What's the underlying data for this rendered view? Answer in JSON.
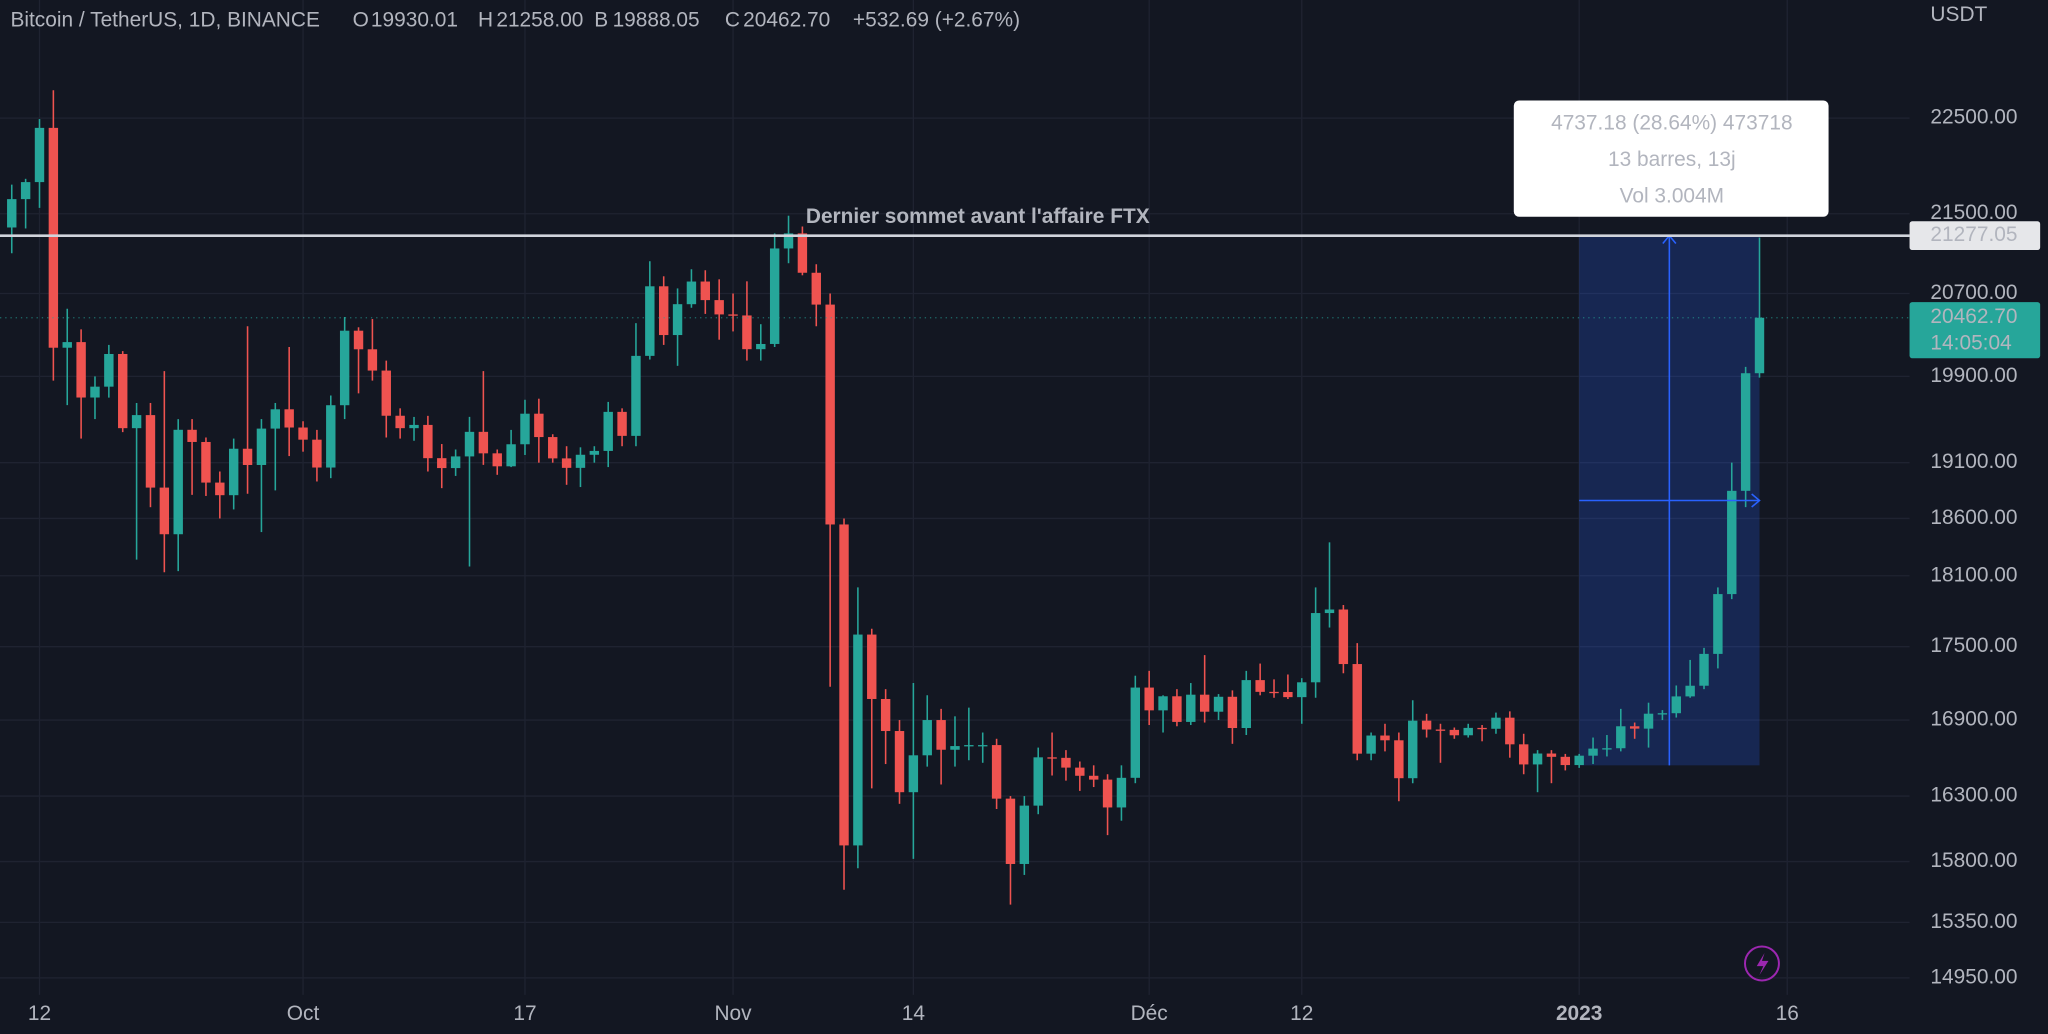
{
  "chart_data": {
    "type": "candlestick",
    "title": "Bitcoin / TetherUS, 1D, BINANCE",
    "legend": [
      {
        "key": "O",
        "value": "19930.01"
      },
      {
        "key": "H",
        "value": "21258.00"
      },
      {
        "key": "B",
        "value": "19888.05"
      },
      {
        "key": "C",
        "value": "20462.70"
      }
    ],
    "change": "+532.69 (+2.67%)",
    "unit": "USDT",
    "colors": {
      "up": "#26a69a",
      "down": "#ef5350"
    },
    "log": true,
    "grid": true,
    "ylim": [
      14830,
      23800
    ],
    "yticks": [
      {
        "value": 22500,
        "label": "22500.00"
      },
      {
        "value": 21500,
        "label": "21500.00"
      },
      {
        "value": 20700,
        "label": "20700.00"
      },
      {
        "value": 19900,
        "label": "19900.00"
      },
      {
        "value": 19100,
        "label": "19100.00"
      },
      {
        "value": 18600,
        "label": "18600.00"
      },
      {
        "value": 18100,
        "label": "18100.00"
      },
      {
        "value": 17500,
        "label": "17500.00"
      },
      {
        "value": 16900,
        "label": "16900.00"
      },
      {
        "value": 16300,
        "label": "16300.00"
      },
      {
        "value": 15800,
        "label": "15800.00"
      },
      {
        "value": 15350,
        "label": "15350.00"
      },
      {
        "value": 14950,
        "label": "14950.00"
      }
    ],
    "categories": [
      null,
      null,
      "12",
      null,
      null,
      null,
      null,
      null,
      null,
      null,
      null,
      null,
      null,
      null,
      null,
      null,
      null,
      null,
      null,
      null,
      null,
      "Oct",
      null,
      null,
      null,
      null,
      null,
      null,
      null,
      null,
      null,
      null,
      null,
      null,
      null,
      null,
      null,
      "17",
      null,
      null,
      null,
      null,
      null,
      null,
      null,
      null,
      null,
      null,
      null,
      null,
      null,
      null,
      "Nov",
      null,
      null,
      null,
      null,
      null,
      null,
      null,
      null,
      null,
      null,
      null,
      null,
      "14",
      null,
      null,
      null,
      null,
      null,
      null,
      null,
      null,
      null,
      null,
      null,
      null,
      null,
      null,
      null,
      null,
      "Déc",
      null,
      null,
      null,
      null,
      null,
      null,
      null,
      null,
      null,
      null,
      "12",
      null,
      null,
      null,
      null,
      null,
      null,
      null,
      null,
      null,
      null,
      null,
      null,
      null,
      null,
      null,
      null,
      null,
      null,
      null,
      "2023",
      null,
      null,
      null,
      null,
      null,
      null,
      null,
      null,
      null,
      null,
      null,
      null,
      null,
      null,
      "16"
    ],
    "open": [
      21360,
      21650,
      21826,
      22396,
      20173,
      20227,
      19701,
      19803,
      20113,
      19416,
      19537,
      18875,
      18461,
      19401,
      19289,
      18920,
      18807,
      19227,
      19079,
      19412,
      19591,
      19422,
      19310,
      19056,
      19629,
      20337,
      20158,
      19955,
      19531,
      19416,
      19446,
      19141,
      19051,
      19157,
      19382,
      19185,
      19067,
      19268,
      19550,
      19334,
      19139,
      19053,
      19172,
      19207,
      19567,
      19345,
      20095,
      20771,
      20295,
      20595,
      20818,
      20635,
      20495,
      20485,
      20159,
      20209,
      21148,
      21300,
      20905,
      20591,
      18547,
      15922,
      17601,
      17070,
      16812,
      16330,
      16619,
      16900,
      16663,
      16692,
      16700,
      16700,
      16280,
      15782,
      16226,
      16603,
      16599,
      16522,
      16458,
      16428,
      16212,
      16442,
      17163,
      16978,
      17092,
      16885,
      17105,
      16967,
      17088,
      16836,
      17224,
      17128,
      17127,
      17085,
      17206,
      17782,
      17812,
      17356,
      16632,
      16776,
      16738,
      16439,
      16895,
      16824,
      16821,
      16778,
      16837,
      16830,
      16919,
      16706,
      16547,
      16633,
      16607,
      16542,
      16616,
      16672,
      16675,
      16850,
      16831,
      16951,
      16955,
      17091,
      17178,
      17440,
      17943,
      18846,
      19930.01,
      null,
      null
    ],
    "high": [
      21800,
      21860,
      22490,
      22800,
      20550,
      20350,
      19900,
      20200,
      20140,
      19650,
      19650,
      19950,
      19500,
      19500,
      19330,
      19020,
      19320,
      20380,
      19500,
      19650,
      20180,
      19480,
      19400,
      19720,
      20470,
      20370,
      20450,
      20050,
      19600,
      19520,
      19530,
      19270,
      19220,
      19520,
      19950,
      19220,
      19400,
      19680,
      19690,
      19360,
      19250,
      19240,
      19250,
      19660,
      19600,
      20410,
      21020,
      20870,
      20750,
      20940,
      20930,
      20840,
      20700,
      20820,
      20400,
      21300,
      21480,
      21370,
      20990,
      20700,
      18600,
      18000,
      17650,
      17150,
      16900,
      17200,
      17100,
      16990,
      16930,
      17000,
      16800,
      16750,
      16300,
      16300,
      16680,
      16800,
      16660,
      16570,
      16540,
      16470,
      16540,
      17260,
      17300,
      17100,
      17150,
      17200,
      17430,
      17110,
      17140,
      17300,
      17360,
      17230,
      17270,
      17240,
      18000,
      18390,
      17850,
      17530,
      16800,
      16870,
      16800,
      17060,
      16950,
      16870,
      16840,
      16870,
      16860,
      16960,
      16970,
      16790,
      16660,
      16660,
      16630,
      16630,
      16760,
      16780,
      16990,
      16880,
      17040,
      16980,
      17180,
      17390,
      17490,
      18000,
      19100,
      19990,
      21258,
      null,
      null
    ],
    "low": [
      21100,
      21350,
      21560,
      19860,
      19630,
      19320,
      19500,
      19700,
      19380,
      18240,
      18700,
      18130,
      18140,
      18810,
      18800,
      18600,
      18680,
      18820,
      18480,
      18850,
      19160,
      19200,
      18930,
      18960,
      19500,
      19740,
      19860,
      19330,
      19320,
      19300,
      19020,
      18870,
      18980,
      18180,
      19080,
      18990,
      19060,
      19170,
      19100,
      19100,
      18900,
      18880,
      19100,
      19060,
      19250,
      19250,
      20060,
      20200,
      20000,
      20560,
      20500,
      20250,
      20330,
      20050,
      20050,
      20180,
      21000,
      20880,
      20380,
      17170,
      15590,
      15750,
      16360,
      16550,
      16240,
      15820,
      16530,
      16390,
      16530,
      16580,
      16560,
      16200,
      15480,
      15700,
      16160,
      16460,
      16420,
      16340,
      16370,
      16000,
      16110,
      16400,
      16860,
      16800,
      16850,
      16860,
      16880,
      16900,
      16710,
      16780,
      17100,
      17080,
      17070,
      16870,
      17080,
      17660,
      17280,
      16580,
      16580,
      16650,
      16260,
      16400,
      16760,
      16560,
      16750,
      16760,
      16730,
      16790,
      16600,
      16470,
      16330,
      16400,
      16500,
      16520,
      16550,
      16610,
      16650,
      16750,
      16680,
      16900,
      16920,
      17080,
      17150,
      17320,
      17900,
      18700,
      19888.05,
      null,
      null
    ],
    "close": [
      21650,
      21826,
      22396,
      20173,
      20227,
      19701,
      19803,
      20113,
      19416,
      19537,
      18875,
      18461,
      19401,
      19289,
      18920,
      18807,
      19227,
      19079,
      19412,
      19591,
      19422,
      19310,
      19056,
      19629,
      20337,
      20158,
      19955,
      19531,
      19416,
      19446,
      19141,
      19051,
      19157,
      19382,
      19185,
      19067,
      19268,
      19550,
      19334,
      19139,
      19053,
      19172,
      19207,
      19567,
      19345,
      20095,
      20771,
      20295,
      20595,
      20818,
      20635,
      20495,
      20485,
      20159,
      20209,
      21148,
      21300,
      20905,
      20591,
      18547,
      15922,
      17601,
      17070,
      16812,
      16330,
      16619,
      16900,
      16663,
      16692,
      16700,
      16700,
      16280,
      15782,
      16226,
      16603,
      16599,
      16522,
      16458,
      16428,
      16212,
      16442,
      17163,
      16978,
      17092,
      16885,
      17105,
      16967,
      17088,
      16836,
      17224,
      17128,
      17127,
      17085,
      17206,
      17782,
      17812,
      17356,
      16632,
      16776,
      16738,
      16439,
      16895,
      16824,
      16821,
      16778,
      16837,
      16830,
      16919,
      16706,
      16547,
      16633,
      16607,
      16542,
      16616,
      16672,
      16675,
      16850,
      16831,
      16951,
      16955,
      17091,
      17178,
      17440,
      17943,
      18846,
      19930.01,
      20462.7,
      null,
      null
    ],
    "hline": {
      "value": 21277.05,
      "note": "Dernier sommet avant l'affaire FTX"
    },
    "last_price": {
      "value": 20462.7,
      "label": "20462.70",
      "countdown": "14:05:04"
    },
    "measure": {
      "from": 16539.87,
      "to": 21277.05,
      "lines": [
        "4737.18 (28.64%) 473718",
        "13 barres, 13j",
        "Vol 3.004M"
      ]
    }
  }
}
